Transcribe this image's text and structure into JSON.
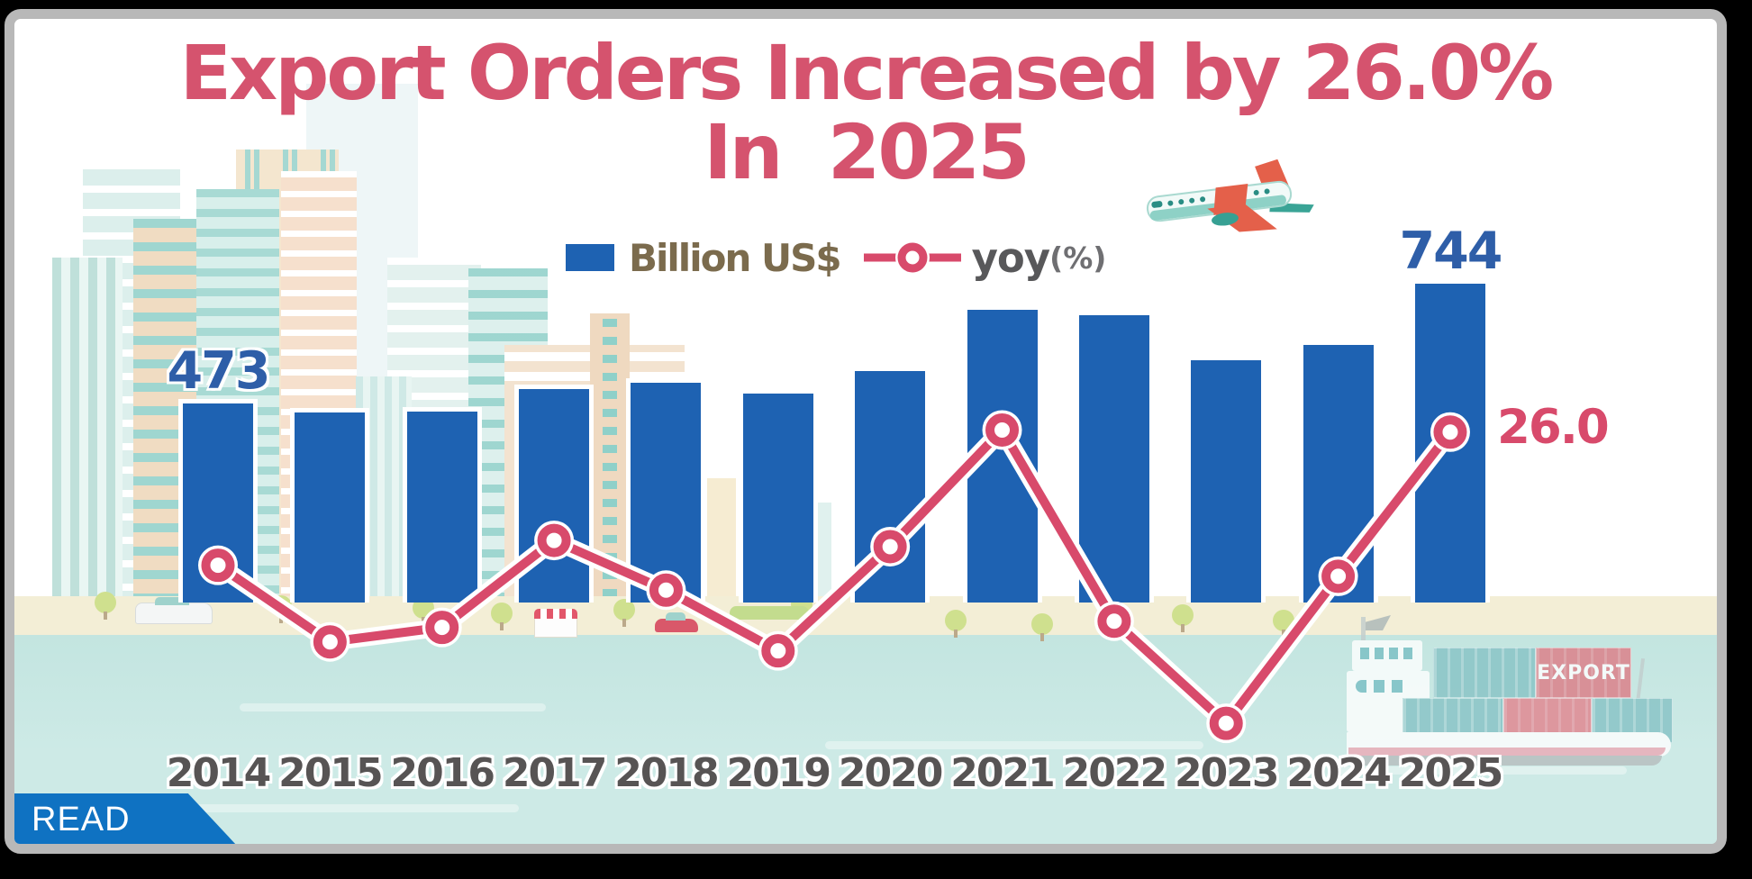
{
  "title": {
    "line1": "Export Orders Increased by 26.0%",
    "line2": "In  2025"
  },
  "legend": {
    "bar_label": "Billion US$",
    "line_label": "yoy",
    "line_suffix": "(%)"
  },
  "chart_data": {
    "type": "bar+line",
    "categories": [
      "2014",
      "2015",
      "2016",
      "2017",
      "2018",
      "2019",
      "2020",
      "2021",
      "2022",
      "2023",
      "2024",
      "2025"
    ],
    "series": [
      {
        "name": "Billion US$",
        "type": "bar",
        "color": "#1e62b2",
        "values": [
          473,
          453,
          455,
          506,
          520,
          496,
          547,
          685,
          673,
          571,
          606,
          744
        ]
      },
      {
        "name": "yoy(%)",
        "type": "line",
        "color": "#d84a6b",
        "values": [
          6.7,
          -4.4,
          -2.3,
          10.3,
          3.1,
          -5.7,
          9.4,
          26.3,
          -1.4,
          -16.2,
          5.1,
          26.0
        ]
      }
    ],
    "data_labels": {
      "bar_first": "473",
      "bar_last": "744",
      "line_last": "26.0"
    },
    "legend_position": "top-center",
    "grid": false,
    "axes_hidden": true
  },
  "read_banner": {
    "label": "READ"
  },
  "decor": {
    "ship_container_label": "EXPORT",
    "airplane_icon": "airplane-icon",
    "ship_icon": "cargo-ship-icon",
    "skyline_icon": "city-skyline"
  },
  "colors": {
    "title_pink": "#d5536e",
    "bar_blue": "#1e62b2",
    "line_pink": "#d84a6b",
    "value_label_blue": "#2e5ea8",
    "year_label_gray": "#575454",
    "legend_bar_text": "#7b6b4d",
    "legend_line_text": "#58585a",
    "water_teal": "#cdeae6",
    "ground_cream": "#f3eed6",
    "card_border_gray": "#b8b8b8",
    "read_banner_blue": "#0f72c2"
  }
}
